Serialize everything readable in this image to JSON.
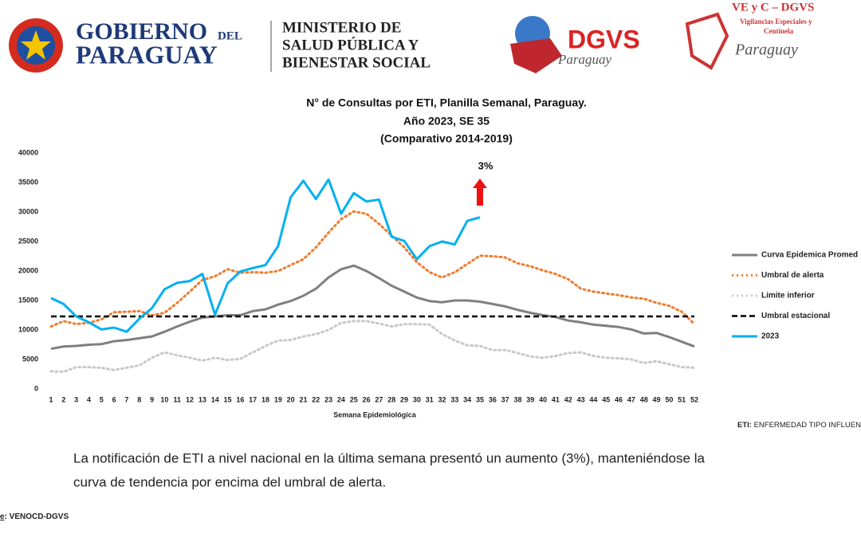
{
  "header": {
    "gov_1": "GOBIERNO",
    "gov_2": "DEL",
    "gov_3": "PARAGUAY",
    "min_1": "MINISTERIO DE",
    "min_2": "SALUD PÚBLICA Y",
    "min_3": "BIENESTAR SOCIAL",
    "dgvs": "DGVS",
    "dgvs_sub": "Paraguay",
    "vec_1": "VE y C – DGVS",
    "vec_2": "Vigilancias Especiales y",
    "vec_3": "Centinela",
    "vec_sub": "Paraguay"
  },
  "chart_data": {
    "type": "line",
    "title": [
      "N° de Consultas por ETI, Planilla Semanal, Paraguay.",
      "Año 2023, SE 35",
      "(Comparativo 2014-2019)"
    ],
    "x_label": "Semana Epidemiológica",
    "annotation": "3%",
    "categories": [
      "1",
      "2",
      "3",
      "4",
      "5",
      "6",
      "7",
      "8",
      "9",
      "10",
      "11",
      "12",
      "13",
      "14",
      "15",
      "16",
      "17",
      "18",
      "19",
      "20",
      "21",
      "22",
      "23",
      "24",
      "25",
      "26",
      "27",
      "28",
      "29",
      "30",
      "31",
      "32",
      "33",
      "34",
      "35",
      "36",
      "37",
      "38",
      "39",
      "40",
      "41",
      "42",
      "43",
      "44",
      "45",
      "46",
      "47",
      "48",
      "49",
      "50",
      "51",
      "52"
    ],
    "ylim": [
      0,
      40000
    ],
    "yticks": [
      0,
      5000,
      10000,
      15000,
      20000,
      25000,
      30000,
      35000,
      40000
    ],
    "series": [
      {
        "name": "Curva Epidemica Promed",
        "color": "#7f7f7f",
        "style": "solid",
        "values": [
          6800,
          7200,
          7300,
          7500,
          7600,
          8100,
          8300,
          8600,
          8900,
          9700,
          10600,
          11400,
          12100,
          12300,
          12500,
          12500,
          13200,
          13500,
          14300,
          14900,
          15800,
          17000,
          18900,
          20300,
          20900,
          20000,
          18800,
          17500,
          16500,
          15500,
          14900,
          14700,
          15000,
          15000,
          14800,
          14400,
          14000,
          13400,
          12900,
          12500,
          12200,
          11600,
          11300,
          10900,
          10700,
          10500,
          10100,
          9400,
          9500,
          8800,
          8000,
          7200
        ]
      },
      {
        "name": "Umbral de alerta",
        "color": "#ed7d31",
        "style": "dotted",
        "values": [
          10600,
          11500,
          11000,
          11200,
          11800,
          13000,
          13100,
          13200,
          12500,
          12900,
          14600,
          16500,
          18500,
          19100,
          20300,
          19700,
          19800,
          19700,
          20000,
          21000,
          22000,
          24000,
          26500,
          28800,
          30100,
          29700,
          28000,
          26000,
          24000,
          21500,
          19800,
          18900,
          19800,
          21200,
          22600,
          22500,
          22300,
          21300,
          20800,
          20100,
          19500,
          18600,
          17000,
          16500,
          16200,
          15900,
          15500,
          15300,
          14600,
          14100,
          13100,
          11000
        ]
      },
      {
        "name": "Limite inferior",
        "color": "#c8c8c8",
        "style": "dotted",
        "values": [
          3000,
          2900,
          3700,
          3700,
          3600,
          3200,
          3600,
          4000,
          5300,
          6200,
          5700,
          5300,
          4800,
          5300,
          4900,
          5100,
          6200,
          7300,
          8200,
          8300,
          8900,
          9300,
          10000,
          11200,
          11500,
          11500,
          11100,
          10600,
          11000,
          11000,
          10900,
          9300,
          8200,
          7400,
          7300,
          6600,
          6600,
          6100,
          5500,
          5300,
          5600,
          6100,
          6200,
          5600,
          5300,
          5200,
          5000,
          4400,
          4700,
          4200,
          3700,
          3600
        ]
      },
      {
        "name": "Umbral estacional",
        "color": "#000000",
        "style": "dashed",
        "values": [
          12300,
          12300,
          12300,
          12300,
          12300,
          12300,
          12300,
          12300,
          12300,
          12300,
          12300,
          12300,
          12300,
          12300,
          12300,
          12300,
          12300,
          12300,
          12300,
          12300,
          12300,
          12300,
          12300,
          12300,
          12300,
          12300,
          12300,
          12300,
          12300,
          12300,
          12300,
          12300,
          12300,
          12300,
          12300,
          12300,
          12300,
          12300,
          12300,
          12300,
          12300,
          12300,
          12300,
          12300,
          12300,
          12300,
          12300,
          12300,
          12300,
          12300,
          12300,
          12300
        ]
      },
      {
        "name": "2023",
        "color": "#00b0f0",
        "style": "solid",
        "values": [
          15400,
          14400,
          12300,
          11300,
          10100,
          10400,
          9700,
          11900,
          13700,
          16900,
          18000,
          18300,
          19500,
          12600,
          17900,
          19900,
          20500,
          21000,
          24200,
          32500,
          35300,
          32200,
          35500,
          29700,
          33200,
          31800,
          32100,
          25800,
          25100,
          22000,
          24200,
          25000,
          24500,
          28500,
          29100,
          null,
          null,
          null,
          null,
          null,
          null,
          null,
          null,
          null,
          null,
          null,
          null,
          null,
          null,
          null,
          null,
          null
        ]
      }
    ]
  },
  "note": {
    "key": "ETI:",
    "text": "ENFERMEDAD TIPO INFLUEN"
  },
  "body": [
    "La notificación de ETI a nivel nacional en la última semana presentó un aumento (3%), manteniéndose la",
    "curva de tendencia  por encima del umbral de alerta."
  ],
  "source": {
    "key": "e",
    "text": ": VENOCD-DGVS"
  }
}
